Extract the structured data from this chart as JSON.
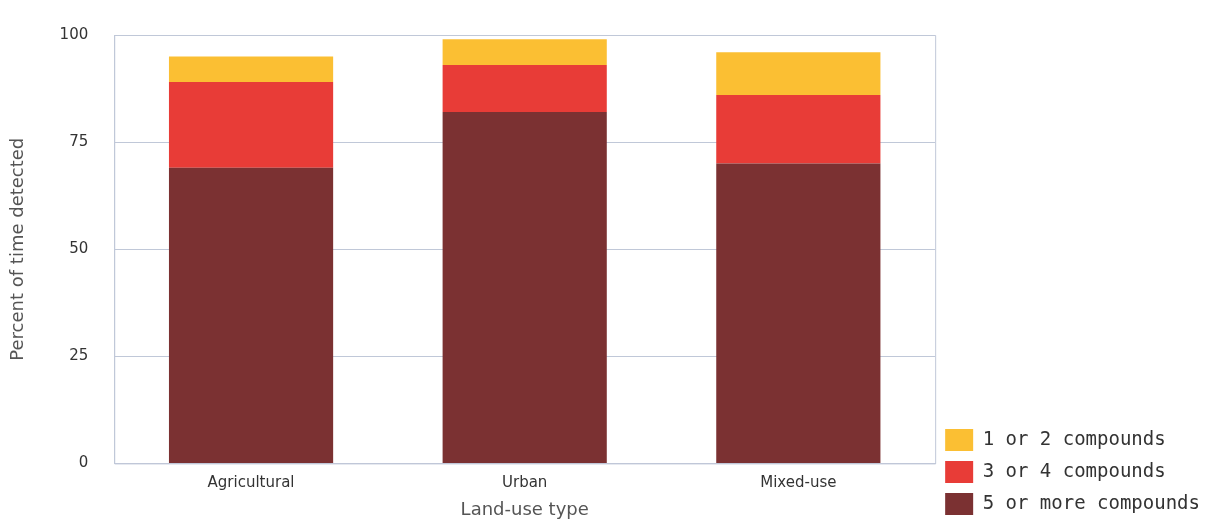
{
  "chart_data": {
    "type": "bar",
    "stacked": true,
    "xlabel": "Land-use type",
    "ylabel": "Percent of time detected",
    "categories": [
      "Agricultural",
      "Urban",
      "Mixed-use"
    ],
    "series": [
      {
        "name": "5 or more compounds",
        "color": "#7b3132",
        "values": [
          69,
          82,
          70
        ]
      },
      {
        "name": "3 or 4 compounds",
        "color": "#e83c37",
        "values": [
          20,
          11,
          16
        ]
      },
      {
        "name": "1 or 2 compounds",
        "color": "#fbbf33",
        "values": [
          6,
          6,
          10
        ]
      }
    ],
    "ylim": [
      0,
      100
    ],
    "yticks": [
      0,
      25,
      50,
      75,
      100
    ],
    "grid": "y",
    "legend": "bottom right"
  }
}
